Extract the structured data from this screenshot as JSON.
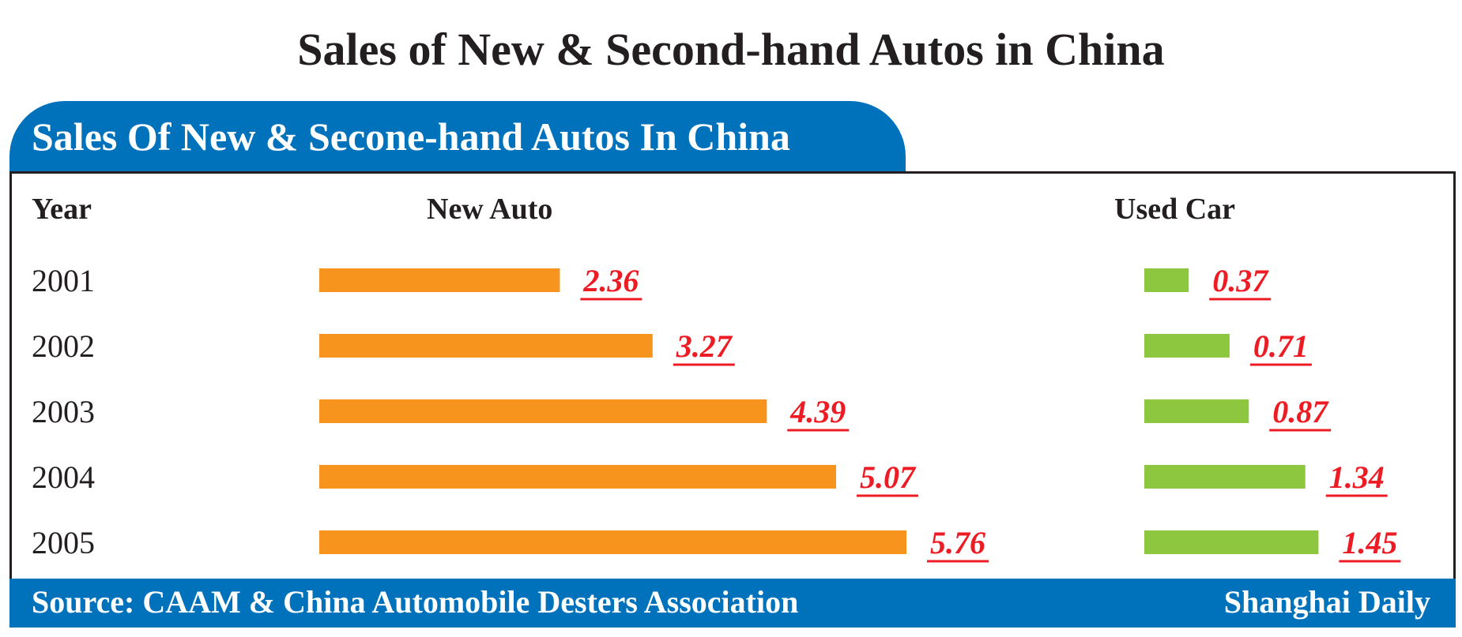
{
  "title": "Sales of New & Second-hand Autos in China",
  "banner_title": "Sales Of New & Secone-hand Autos In China",
  "footer": {
    "source": "Source: CAAM & China Automobile Desters Association",
    "credit": "Shanghai Daily"
  },
  "colors": {
    "new_auto": "#f7941d",
    "used_car": "#8dc63f",
    "value_label": "#ed1c24",
    "brand_blue": "#0072bc"
  },
  "chart_data": {
    "type": "bar",
    "orientation": "horizontal",
    "category_header": "Year",
    "categories": [
      "2001",
      "2002",
      "2003",
      "2004",
      "2005"
    ],
    "series": [
      {
        "name": "New Auto",
        "values": [
          2.36,
          3.27,
          4.39,
          5.07,
          5.76
        ]
      },
      {
        "name": "Used Car",
        "values": [
          0.37,
          0.71,
          0.87,
          1.34,
          1.45
        ]
      }
    ],
    "value_labels": [
      [
        "2.36",
        "3.27",
        "4.39",
        "5.07",
        "5.76"
      ],
      [
        "0.37",
        "0.71",
        "0.87",
        "1.34",
        "1.45"
      ]
    ]
  }
}
